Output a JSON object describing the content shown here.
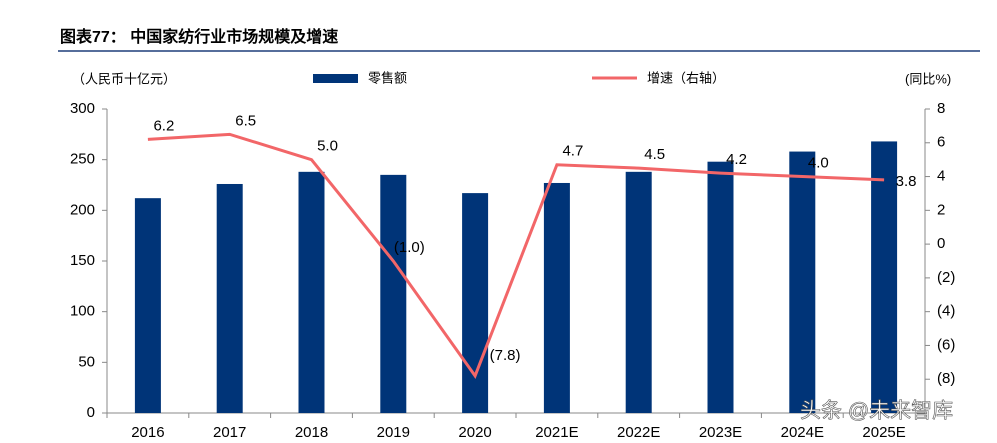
{
  "header": {
    "title": "图表77：  中国家纺行业市场规模及增速"
  },
  "chart_data": {
    "type": "bar-line",
    "y_label": "（人民币十亿元）",
    "y2_label": "(同比%)",
    "categories": [
      "2016",
      "2017",
      "2018",
      "2019",
      "2020",
      "2021E",
      "2022E",
      "2023E",
      "2024E",
      "2025E"
    ],
    "series": [
      {
        "name": "零售额",
        "type": "bar",
        "color": "#003478",
        "values": [
          212,
          226,
          238,
          235,
          217,
          227,
          238,
          248,
          258,
          268
        ]
      },
      {
        "name": "增速（右轴）",
        "type": "line",
        "axis": "y2",
        "color": "#f26668",
        "values": [
          6.2,
          6.5,
          5.0,
          -1.0,
          -7.8,
          4.7,
          4.5,
          4.2,
          4.0,
          3.8
        ],
        "value_labels": [
          "6.2",
          "6.5",
          "5.0",
          "(1.0)",
          "(7.8)",
          "4.7",
          "4.5",
          "4.2",
          "4.0",
          "3.8"
        ]
      }
    ],
    "ylim": [
      0,
      300
    ],
    "yticks": [
      0,
      50,
      100,
      150,
      200,
      250,
      300
    ],
    "y2lim": [
      -10,
      8
    ],
    "y2ticks": [
      {
        "value": -8,
        "label": "(8)"
      },
      {
        "value": -6,
        "label": "(6)"
      },
      {
        "value": -4,
        "label": "(4)"
      },
      {
        "value": -2,
        "label": "(2)"
      },
      0,
      2,
      4,
      6,
      8
    ],
    "grid": false
  },
  "watermark": "头条 @未来智库"
}
